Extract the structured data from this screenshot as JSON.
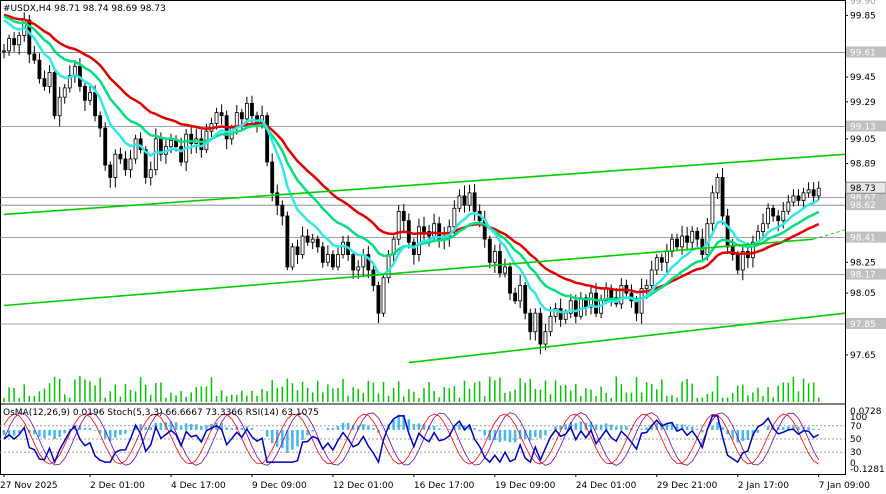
{
  "header": {
    "symbol": "#USDX,H4",
    "ohlc": "98.71 98.74 98.69 98.73"
  },
  "indicator_header": {
    "osma": "OsMA(12,26,9) 0.0196",
    "stoch": "Stoch(5,3,3) 66.6667 73.3366",
    "rsi": "RSI(14) 63.1075"
  },
  "colors": {
    "bull_candle": "#000000",
    "bear_candle": "#000000",
    "ma_red": "#e00000",
    "ma_green": "#00e080",
    "ma_cyan": "#30e8e8",
    "channel": "#00d000",
    "volume": "#00c800",
    "osma_hist": "#40b8f0",
    "stoch_main": "#8000a0",
    "stoch_signal": "#ff0000",
    "rsi": "#0000c0",
    "price_tag_bg": "#c0c0c0",
    "current_tag_bg": "#e8e8e8"
  },
  "chart_data": {
    "type": "candlestick",
    "timeframe": "H4",
    "ylim": [
      97.5,
      99.95
    ],
    "y_ticks": [
      99.85,
      99.61,
      99.45,
      99.29,
      99.13,
      99.05,
      98.89,
      98.73,
      98.67,
      98.62,
      98.41,
      98.25,
      98.17,
      98.05,
      97.85,
      97.65
    ],
    "y_tick_labels": [
      "99.85",
      "99.61",
      "99.45",
      "99.29",
      "99.13",
      "99.05",
      "98.89",
      "98.73",
      "98.67",
      "98.62",
      "98.41",
      "98.25",
      "98.17",
      "98.05",
      "97.85",
      "97.65"
    ],
    "x_tick_labels": [
      "27 Nov 2025",
      "2 Dec 01:00",
      "4 Dec 17:00",
      "9 Dec 09:00",
      "12 Dec 01:00",
      "16 Dec 17:00",
      "19 Dec 09:00",
      "24 Dec 01:00",
      "29 Dec 21:00",
      "2 Jan 17:00",
      "7 Jan 09:00"
    ],
    "x_tick_index": [
      0,
      17,
      33,
      49,
      65,
      81,
      97,
      113,
      129,
      145,
      161
    ],
    "horizontal_levels": [
      {
        "value": 99.61,
        "label": "99.61"
      },
      {
        "value": 99.13,
        "label": "99.13"
      },
      {
        "value": 98.67,
        "label": "98.67"
      },
      {
        "value": 98.62,
        "label": "98.62"
      },
      {
        "value": 98.41,
        "label": "98.41"
      },
      {
        "value": 98.17,
        "label": "98.17"
      },
      {
        "value": 97.85,
        "label": "97.85"
      }
    ],
    "current_price": {
      "value": 98.73,
      "label": "98.73"
    },
    "top_price_label": "99.90",
    "closes": [
      99.62,
      99.7,
      99.66,
      99.72,
      99.82,
      99.6,
      99.56,
      99.44,
      99.39,
      99.48,
      99.2,
      99.32,
      99.38,
      99.46,
      99.52,
      99.39,
      99.3,
      99.35,
      99.2,
      99.12,
      98.88,
      98.8,
      98.95,
      98.92,
      98.85,
      98.92,
      99.05,
      98.98,
      98.8,
      98.85,
      99.05,
      98.95,
      99.0,
      99.04,
      99.0,
      98.9,
      99.08,
      99.02,
      99.05,
      98.98,
      99.1,
      99.15,
      99.22,
      99.2,
      99.05,
      99.12,
      99.22,
      99.18,
      99.28,
      99.2,
      99.15,
      99.2,
      98.9,
      98.7,
      98.62,
      98.55,
      98.22,
      98.35,
      98.3,
      98.42,
      98.38,
      98.4,
      98.35,
      98.25,
      98.3,
      98.22,
      98.3,
      98.38,
      98.3,
      98.2,
      98.22,
      98.3,
      98.2,
      98.1,
      97.92,
      98.15,
      98.3,
      98.4,
      98.58,
      98.52,
      98.38,
      98.3,
      98.48,
      98.45,
      98.42,
      98.5,
      98.4,
      98.42,
      98.48,
      98.6,
      98.68,
      98.62,
      98.7,
      98.58,
      98.52,
      98.4,
      98.25,
      98.32,
      98.18,
      98.22,
      98.05,
      98.0,
      98.1,
      97.92,
      97.8,
      97.92,
      97.72,
      97.8,
      97.9,
      97.95,
      97.88,
      97.92,
      98.0,
      97.9,
      98.02,
      97.96,
      98.05,
      97.92,
      98.0,
      98.08,
      98.02,
      97.98,
      98.1,
      98.05,
      98.0,
      97.92,
      98.08,
      98.1,
      98.2,
      98.28,
      98.25,
      98.32,
      98.4,
      98.35,
      98.42,
      98.38,
      98.45,
      98.4,
      98.3,
      98.5,
      98.7,
      98.8,
      98.55,
      98.35,
      98.3,
      98.2,
      98.32,
      98.28,
      98.38,
      98.45,
      98.5,
      98.6,
      98.55,
      98.52,
      98.58,
      98.64,
      98.68,
      98.65,
      98.7,
      98.72,
      98.68,
      98.73
    ],
    "volume_scale": [
      0,
      1
    ],
    "osma_range": [
      -0.1281,
      0.0728
    ],
    "osma_labels": [
      "0.0728",
      "-0.1281"
    ],
    "stoch_rsi_levels": [
      70,
      50,
      30
    ],
    "stoch_rsi_level_labels": [
      "70",
      "50",
      "30"
    ],
    "stoch_rsi_top_label": "100",
    "stoch_rsi_bottom_label": "0",
    "moving_averages": [
      {
        "color_key": "ma_red",
        "period": 200
      },
      {
        "color_key": "ma_green",
        "period": 100
      },
      {
        "color_key": "ma_cyan",
        "period": 50
      }
    ],
    "trendlines": [
      {
        "from": [
          0,
          98.56
        ],
        "to": [
          180,
          98.95
        ]
      },
      {
        "from": [
          0,
          97.97
        ],
        "to": [
          160,
          98.4
        ]
      },
      {
        "from": [
          160,
          98.4
        ],
        "to": [
          180,
          98.46
        ],
        "dashed": true
      },
      {
        "from": [
          80,
          97.6
        ],
        "to": [
          180,
          97.92
        ]
      }
    ]
  }
}
